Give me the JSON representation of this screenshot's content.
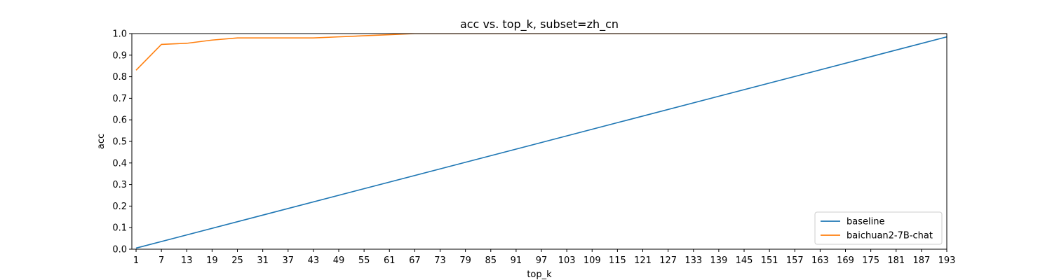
{
  "chart_data": {
    "type": "line",
    "title": "acc vs. top_k, subset=zh_cn",
    "xlabel": "top_k",
    "ylabel": "acc",
    "xlim": [
      0,
      193
    ],
    "ylim": [
      0.0,
      1.0
    ],
    "x_ticks": [
      "1",
      "7",
      "13",
      "19",
      "25",
      "31",
      "37",
      "43",
      "49",
      "55",
      "61",
      "67",
      "73",
      "79",
      "85",
      "91",
      "97",
      "103",
      "109",
      "115",
      "121",
      "127",
      "133",
      "139",
      "145",
      "151",
      "157",
      "163",
      "169",
      "175",
      "181",
      "187",
      "193"
    ],
    "y_ticks": [
      "0.0",
      "0.1",
      "0.2",
      "0.3",
      "0.4",
      "0.5",
      "0.6",
      "0.7",
      "0.8",
      "0.9",
      "1.0"
    ],
    "grid": false,
    "legend_position": "lower-right",
    "series": [
      {
        "name": "baseline",
        "color": "#1f77b4",
        "x": [
          1,
          193
        ],
        "y": [
          0.005,
          0.985
        ]
      },
      {
        "name": "baichuan2-7B-chat",
        "color": "#ff7f0e",
        "x": [
          1,
          7,
          13,
          19,
          25,
          31,
          37,
          43,
          49,
          55,
          61,
          67,
          73,
          79,
          85,
          91,
          97,
          103,
          109,
          115,
          121,
          127,
          133,
          139,
          145,
          151,
          157,
          163,
          169,
          175,
          181,
          187,
          193
        ],
        "y": [
          0.83,
          0.95,
          0.955,
          0.97,
          0.98,
          0.98,
          0.98,
          0.98,
          0.985,
          0.99,
          0.995,
          1.0,
          1.0,
          1.0,
          1.0,
          1.0,
          1.0,
          1.0,
          1.0,
          1.0,
          1.0,
          1.0,
          1.0,
          1.0,
          1.0,
          1.0,
          1.0,
          1.0,
          1.0,
          1.0,
          1.0,
          1.0,
          1.0
        ]
      }
    ]
  }
}
